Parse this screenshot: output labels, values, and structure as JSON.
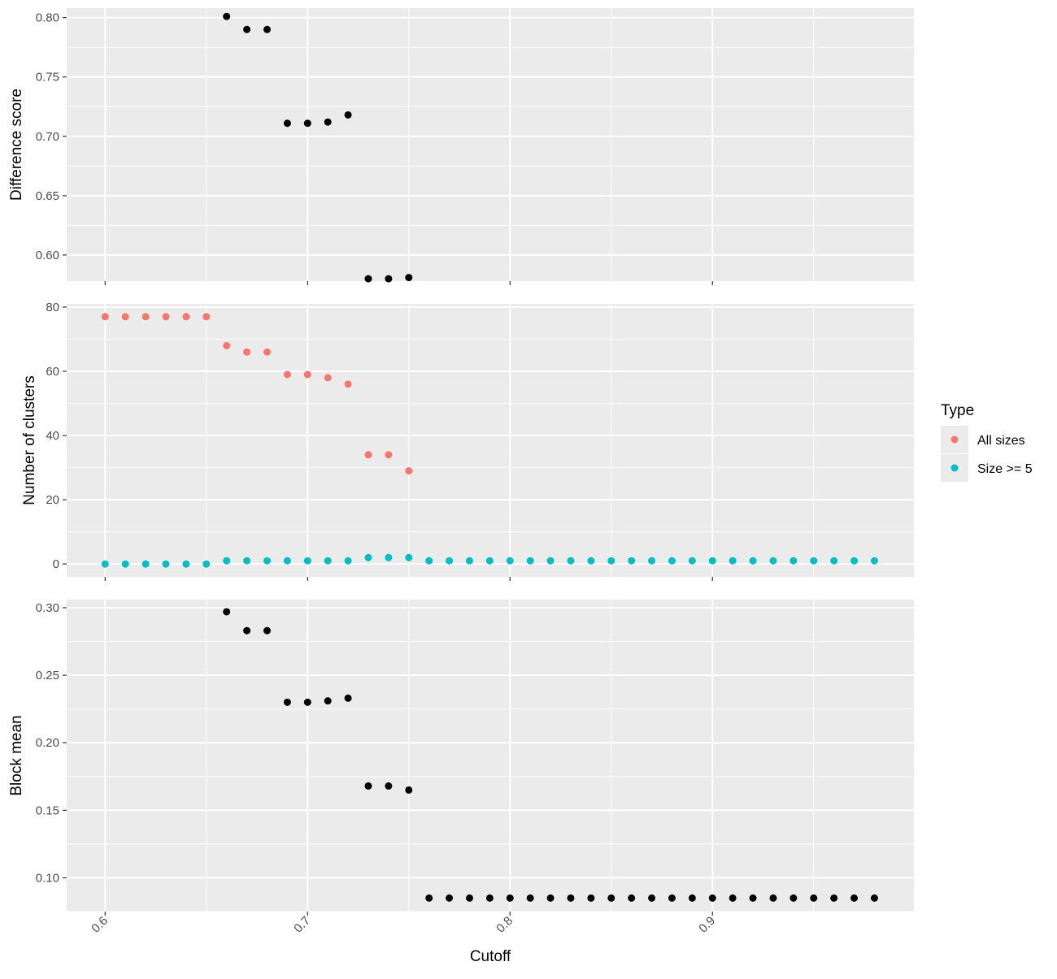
{
  "chart_data": {
    "type": "scatter",
    "facets": [
      {
        "id": "difference-score",
        "ylabel": "Difference score",
        "ylim": [
          0.578,
          0.808
        ],
        "yticks": [
          0.6,
          0.65,
          0.7,
          0.75,
          0.8
        ],
        "ytick_labels": [
          "0.60",
          "0.65",
          "0.70",
          "0.75",
          "0.80"
        ],
        "series": [
          {
            "color": "#000000",
            "x": [
              0.66,
              0.67,
              0.68,
              0.69,
              0.7,
              0.71,
              0.72,
              0.73,
              0.74,
              0.75
            ],
            "y": [
              0.801,
              0.79,
              0.79,
              0.711,
              0.711,
              0.712,
              0.718,
              0.58,
              0.58,
              0.581
            ]
          }
        ]
      },
      {
        "id": "number-of-clusters",
        "ylabel": "Number of clusters",
        "ylim": [
          -4,
          81
        ],
        "yticks": [
          0,
          20,
          40,
          60,
          80
        ],
        "ytick_labels": [
          "0",
          "20",
          "40",
          "60",
          "80"
        ],
        "series": [
          {
            "name": "All sizes",
            "color": "#F8766D",
            "x": [
              0.6,
              0.61,
              0.62,
              0.63,
              0.64,
              0.65,
              0.66,
              0.67,
              0.68,
              0.69,
              0.7,
              0.71,
              0.72,
              0.73,
              0.74,
              0.75
            ],
            "y": [
              77,
              77,
              77,
              77,
              77,
              77,
              68,
              66,
              66,
              59,
              59,
              58,
              56,
              34,
              34,
              29
            ]
          },
          {
            "name": "Size >= 5",
            "color": "#00BFC4",
            "x": [
              0.6,
              0.61,
              0.62,
              0.63,
              0.64,
              0.65,
              0.66,
              0.67,
              0.68,
              0.69,
              0.7,
              0.71,
              0.72,
              0.73,
              0.74,
              0.75,
              0.76,
              0.77,
              0.78,
              0.79,
              0.8,
              0.81,
              0.82,
              0.83,
              0.84,
              0.85,
              0.86,
              0.87,
              0.88,
              0.89,
              0.9,
              0.91,
              0.92,
              0.93,
              0.94,
              0.95,
              0.96,
              0.97,
              0.98
            ],
            "y": [
              0,
              0,
              0,
              0,
              0,
              0,
              1,
              1,
              1,
              1,
              1,
              1,
              1,
              2,
              2,
              2,
              1,
              1,
              1,
              1,
              1,
              1,
              1,
              1,
              1,
              1,
              1,
              1,
              1,
              1,
              1,
              1,
              1,
              1,
              1,
              1,
              1,
              1,
              1
            ]
          }
        ]
      },
      {
        "id": "block-mean",
        "ylabel": "Block mean",
        "ylim": [
          0.075,
          0.306
        ],
        "yticks": [
          0.1,
          0.15,
          0.2,
          0.25,
          0.3
        ],
        "ytick_labels": [
          "0.10",
          "0.15",
          "0.20",
          "0.25",
          "0.30"
        ],
        "series": [
          {
            "color": "#000000",
            "x": [
              0.66,
              0.67,
              0.68,
              0.69,
              0.7,
              0.71,
              0.72,
              0.73,
              0.74,
              0.75,
              0.76,
              0.77,
              0.78,
              0.79,
              0.8,
              0.81,
              0.82,
              0.83,
              0.84,
              0.85,
              0.86,
              0.87,
              0.88,
              0.89,
              0.9,
              0.91,
              0.92,
              0.93,
              0.94,
              0.95,
              0.96,
              0.97,
              0.98
            ],
            "y": [
              0.297,
              0.283,
              0.283,
              0.23,
              0.23,
              0.231,
              0.233,
              0.168,
              0.168,
              0.165,
              0.085,
              0.085,
              0.085,
              0.085,
              0.085,
              0.085,
              0.085,
              0.085,
              0.085,
              0.085,
              0.085,
              0.085,
              0.085,
              0.085,
              0.085,
              0.085,
              0.085,
              0.085,
              0.085,
              0.085,
              0.085,
              0.085,
              0.085
            ]
          }
        ]
      }
    ],
    "x": {
      "label": "Cutoff",
      "lim": [
        0.581,
        0.9995
      ],
      "ticks": [
        0.6,
        0.7,
        0.8,
        0.9
      ],
      "tick_labels": [
        "0.6",
        "0.7",
        "0.8",
        "0.9"
      ]
    },
    "legend": {
      "title": "Type",
      "placement": "right",
      "entries": [
        {
          "label": "All sizes",
          "color": "#F8766D"
        },
        {
          "label": "Size >= 5",
          "color": "#00BFC4"
        }
      ]
    },
    "panel_background": "#EBEBEB",
    "grid_color": "#FFFFFF",
    "grid": true
  }
}
